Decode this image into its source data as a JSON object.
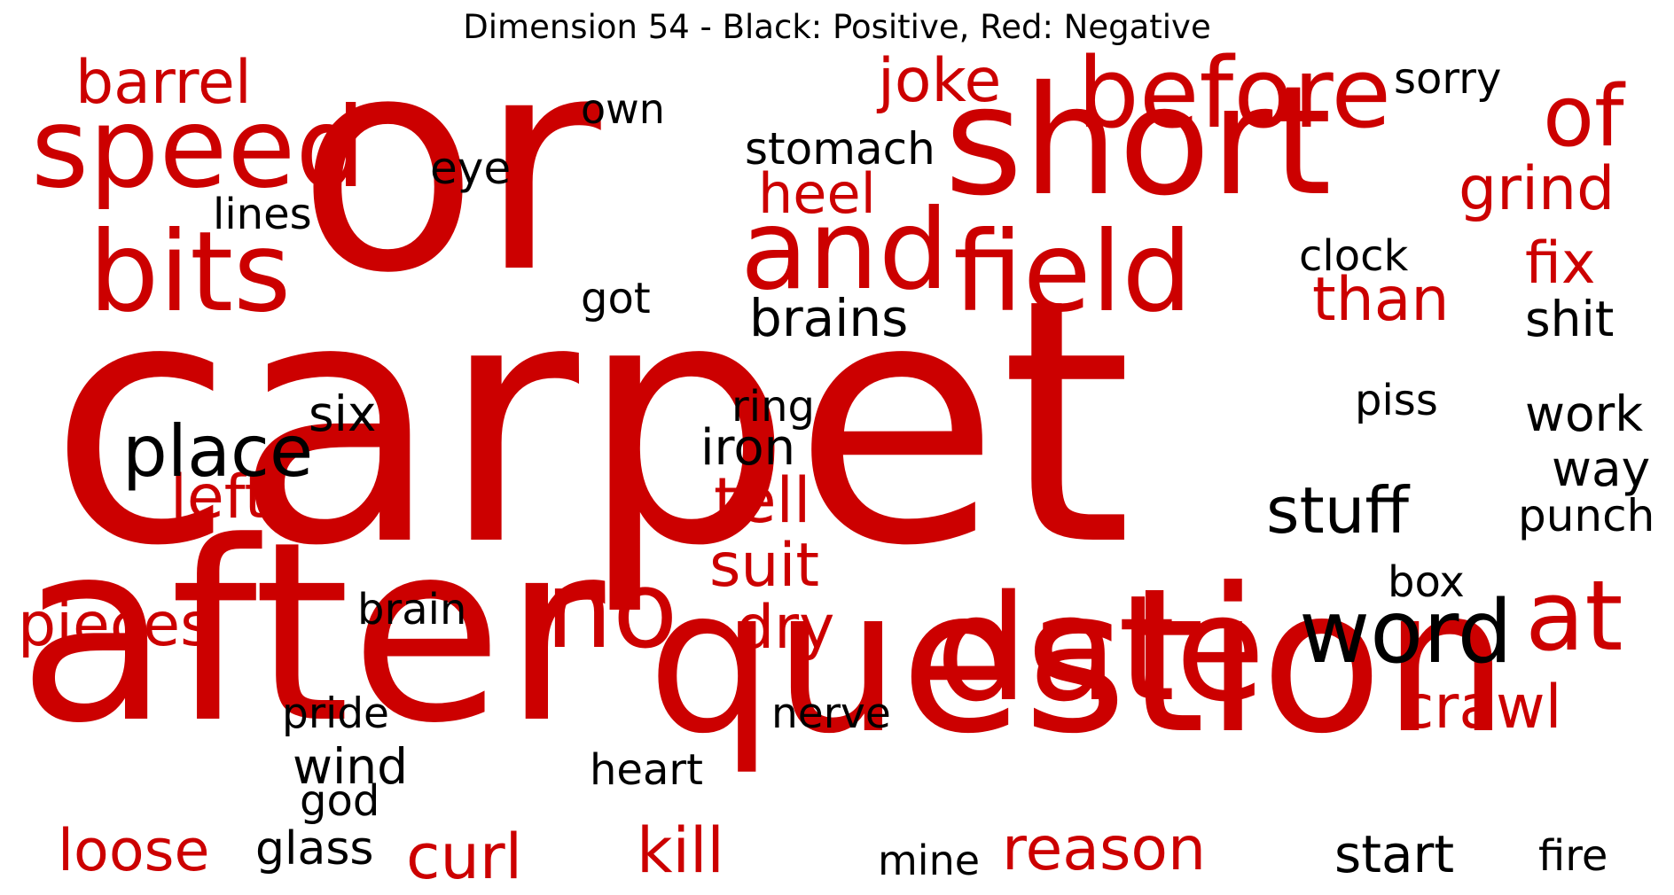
{
  "title": "Dimension 54 - Black: Positive, Red: Negative",
  "colors": {
    "positive": "#000000",
    "negative": "#cc0000"
  },
  "words": [
    {
      "text": "carpet",
      "sign": "negative"
    },
    {
      "text": "or",
      "sign": "negative"
    },
    {
      "text": "after",
      "sign": "negative"
    },
    {
      "text": "question",
      "sign": "negative"
    },
    {
      "text": "short",
      "sign": "negative"
    },
    {
      "text": "date",
      "sign": "negative"
    },
    {
      "text": "speed",
      "sign": "negative"
    },
    {
      "text": "bits",
      "sign": "negative"
    },
    {
      "text": "field",
      "sign": "negative"
    },
    {
      "text": "and",
      "sign": "negative"
    },
    {
      "text": "before",
      "sign": "negative"
    },
    {
      "text": "no",
      "sign": "negative"
    },
    {
      "text": "at",
      "sign": "negative"
    },
    {
      "text": "of",
      "sign": "negative"
    },
    {
      "text": "barrel",
      "sign": "negative"
    },
    {
      "text": "joke",
      "sign": "negative"
    },
    {
      "text": "grind",
      "sign": "negative"
    },
    {
      "text": "heel",
      "sign": "negative"
    },
    {
      "text": "fix",
      "sign": "negative"
    },
    {
      "text": "than",
      "sign": "negative"
    },
    {
      "text": "left",
      "sign": "negative"
    },
    {
      "text": "tell",
      "sign": "negative"
    },
    {
      "text": "suit",
      "sign": "negative"
    },
    {
      "text": "pieces",
      "sign": "negative"
    },
    {
      "text": "dry",
      "sign": "negative"
    },
    {
      "text": "crawl",
      "sign": "negative"
    },
    {
      "text": "loose",
      "sign": "negative"
    },
    {
      "text": "curl",
      "sign": "negative"
    },
    {
      "text": "kill",
      "sign": "negative"
    },
    {
      "text": "reason",
      "sign": "negative"
    },
    {
      "text": "word",
      "sign": "positive"
    },
    {
      "text": "place",
      "sign": "positive"
    },
    {
      "text": "stuff",
      "sign": "positive"
    },
    {
      "text": "brains",
      "sign": "positive"
    },
    {
      "text": "stomach",
      "sign": "positive"
    },
    {
      "text": "sorry",
      "sign": "positive"
    },
    {
      "text": "own",
      "sign": "positive"
    },
    {
      "text": "eye",
      "sign": "positive"
    },
    {
      "text": "lines",
      "sign": "positive"
    },
    {
      "text": "clock",
      "sign": "positive"
    },
    {
      "text": "got",
      "sign": "positive"
    },
    {
      "text": "shit",
      "sign": "positive"
    },
    {
      "text": "six",
      "sign": "positive"
    },
    {
      "text": "ring",
      "sign": "positive"
    },
    {
      "text": "iron",
      "sign": "positive"
    },
    {
      "text": "piss",
      "sign": "positive"
    },
    {
      "text": "work",
      "sign": "positive"
    },
    {
      "text": "way",
      "sign": "positive"
    },
    {
      "text": "punch",
      "sign": "positive"
    },
    {
      "text": "box",
      "sign": "positive"
    },
    {
      "text": "brain",
      "sign": "positive"
    },
    {
      "text": "pride",
      "sign": "positive"
    },
    {
      "text": "nerve",
      "sign": "positive"
    },
    {
      "text": "wind",
      "sign": "positive"
    },
    {
      "text": "heart",
      "sign": "positive"
    },
    {
      "text": "god",
      "sign": "positive"
    },
    {
      "text": "glass",
      "sign": "positive"
    },
    {
      "text": "mine",
      "sign": "positive"
    },
    {
      "text": "start",
      "sign": "positive"
    },
    {
      "text": "fire",
      "sign": "positive"
    }
  ]
}
